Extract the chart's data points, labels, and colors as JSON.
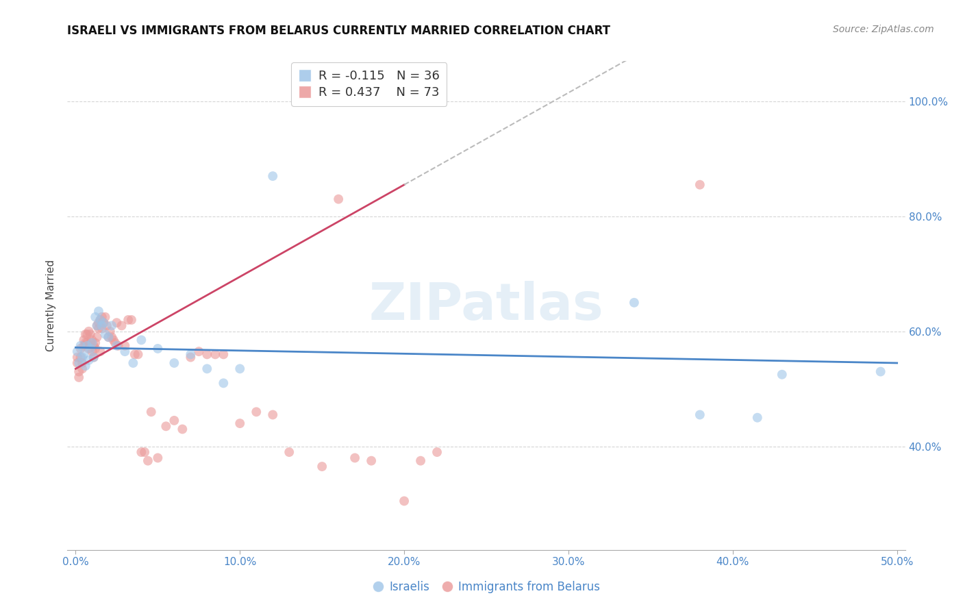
{
  "title": "ISRAELI VS IMMIGRANTS FROM BELARUS CURRENTLY MARRIED CORRELATION CHART",
  "source": "Source: ZipAtlas.com",
  "ylabel": "Currently Married",
  "xlim": [
    -0.005,
    0.505
  ],
  "ylim": [
    0.22,
    1.07
  ],
  "xticks": [
    0.0,
    0.1,
    0.2,
    0.3,
    0.4,
    0.5
  ],
  "xticklabels": [
    "0.0%",
    "10.0%",
    "20.0%",
    "30.0%",
    "40.0%",
    "50.0%"
  ],
  "yticks_left": [],
  "yticks_right": [
    0.4,
    0.6,
    0.8,
    1.0
  ],
  "yticklabels_right": [
    "40.0%",
    "60.0%",
    "80.0%",
    "100.0%"
  ],
  "grid_color": "#cccccc",
  "background_color": "#ffffff",
  "watermark": "ZIPatlas",
  "legend_r1": "R = -0.115",
  "legend_n1": "N = 36",
  "legend_r2": "R = 0.437",
  "legend_n2": "N = 73",
  "color_blue": "#9fc5e8",
  "color_pink": "#ea9999",
  "color_blue_line": "#4a86c8",
  "color_pink_line": "#cc4466",
  "color_dashed": "#bbbbbb",
  "axis_color": "#4a86c8",
  "israelis_x": [
    0.001,
    0.002,
    0.003,
    0.004,
    0.005,
    0.006,
    0.007,
    0.008,
    0.009,
    0.01,
    0.011,
    0.012,
    0.013,
    0.014,
    0.015,
    0.016,
    0.017,
    0.018,
    0.02,
    0.022,
    0.025,
    0.03,
    0.035,
    0.04,
    0.05,
    0.06,
    0.07,
    0.08,
    0.09,
    0.1,
    0.12,
    0.34,
    0.38,
    0.415,
    0.43,
    0.49
  ],
  "israelis_y": [
    0.565,
    0.545,
    0.575,
    0.555,
    0.56,
    0.54,
    0.575,
    0.55,
    0.57,
    0.58,
    0.555,
    0.625,
    0.61,
    0.635,
    0.62,
    0.61,
    0.615,
    0.595,
    0.59,
    0.61,
    0.575,
    0.565,
    0.545,
    0.585,
    0.57,
    0.545,
    0.56,
    0.535,
    0.51,
    0.535,
    0.87,
    0.65,
    0.455,
    0.45,
    0.525,
    0.53
  ],
  "belarus_x": [
    0.001,
    0.001,
    0.002,
    0.002,
    0.003,
    0.003,
    0.004,
    0.004,
    0.005,
    0.005,
    0.006,
    0.006,
    0.007,
    0.007,
    0.008,
    0.008,
    0.009,
    0.009,
    0.01,
    0.01,
    0.011,
    0.011,
    0.012,
    0.012,
    0.013,
    0.013,
    0.014,
    0.014,
    0.015,
    0.015,
    0.016,
    0.016,
    0.017,
    0.018,
    0.019,
    0.02,
    0.021,
    0.022,
    0.023,
    0.024,
    0.025,
    0.026,
    0.028,
    0.03,
    0.032,
    0.034,
    0.036,
    0.038,
    0.04,
    0.042,
    0.044,
    0.046,
    0.05,
    0.055,
    0.06,
    0.065,
    0.07,
    0.075,
    0.08,
    0.085,
    0.09,
    0.1,
    0.11,
    0.12,
    0.13,
    0.15,
    0.16,
    0.17,
    0.18,
    0.2,
    0.21,
    0.22,
    0.38
  ],
  "belarus_y": [
    0.545,
    0.555,
    0.53,
    0.52,
    0.57,
    0.555,
    0.545,
    0.535,
    0.575,
    0.585,
    0.595,
    0.58,
    0.595,
    0.58,
    0.6,
    0.57,
    0.595,
    0.58,
    0.585,
    0.565,
    0.575,
    0.555,
    0.58,
    0.57,
    0.59,
    0.61,
    0.605,
    0.615,
    0.565,
    0.62,
    0.605,
    0.625,
    0.615,
    0.625,
    0.61,
    0.59,
    0.6,
    0.59,
    0.585,
    0.58,
    0.615,
    0.575,
    0.61,
    0.575,
    0.62,
    0.62,
    0.56,
    0.56,
    0.39,
    0.39,
    0.375,
    0.46,
    0.38,
    0.435,
    0.445,
    0.43,
    0.555,
    0.565,
    0.56,
    0.56,
    0.56,
    0.44,
    0.46,
    0.455,
    0.39,
    0.365,
    0.83,
    0.38,
    0.375,
    0.305,
    0.375,
    0.39,
    0.855
  ],
  "blue_line_x": [
    0.0,
    0.5
  ],
  "blue_line_y": [
    0.572,
    0.545
  ],
  "pink_line_x": [
    0.0,
    0.2
  ],
  "pink_line_y": [
    0.535,
    0.855
  ],
  "dashed_line_x": [
    0.2,
    0.5
  ],
  "dashed_line_y": [
    0.855,
    1.335
  ]
}
